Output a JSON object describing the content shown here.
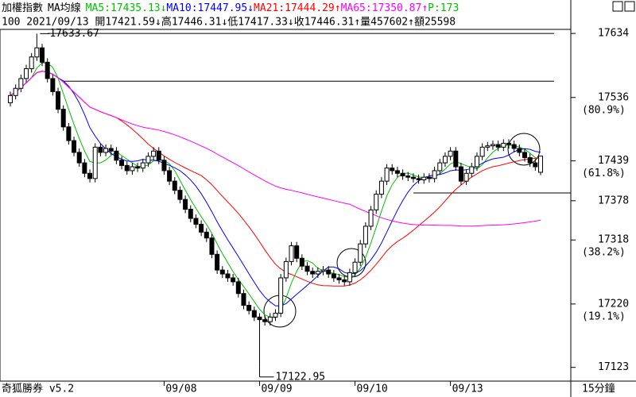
{
  "chart_data": {
    "type": "candlestick",
    "title": "加權指數",
    "indicator_label": "MA均線",
    "header_ma": [
      {
        "text": "MA5:17435.13↓",
        "color": "#00c000"
      },
      {
        "text": "MA10:17447.95↓",
        "color": "#0000ff"
      },
      {
        "text": "MA21:17444.29↑",
        "color": "#ff0000"
      },
      {
        "text": "MA65:17350.87↑",
        "color": "#ff00ff"
      },
      {
        "text": "P:173",
        "color": "#00c000"
      }
    ],
    "info_line": "100 2021/09/13 開17421.59↓高17446.31↓低17417.33↓收17446.31↑量457602↑額25598",
    "footer_left": "奇狐勝券 v5.2",
    "footer_right": "15分鐘",
    "day_labels": [
      {
        "index": 29,
        "label": "09/08"
      },
      {
        "index": 47,
        "label": "09/09"
      },
      {
        "index": 65,
        "label": "09/10"
      },
      {
        "index": 83,
        "label": "09/13"
      }
    ],
    "ylim": [
      17102,
      17639
    ],
    "yticks": [
      17634,
      17536,
      17439,
      17378,
      17318,
      17220,
      17123
    ],
    "retracement_labels": [
      {
        "value": 17536,
        "label": "(80.9%)"
      },
      {
        "value": 17439,
        "label": "(61.8%)"
      },
      {
        "value": 17318,
        "label": "(38.2%)"
      },
      {
        "value": 17220,
        "label": "(19.1%)"
      }
    ],
    "reference_lines": [
      17634,
      17561,
      17390
    ],
    "annotations": [
      {
        "index": 5,
        "value": 17633.67,
        "label": "17633.67"
      },
      {
        "index": 47,
        "value": 17122.95,
        "label": "17122.95"
      }
    ],
    "up_color": "#ffffff",
    "down_color": "#000000",
    "ma_periods": [
      {
        "period": 5,
        "color": "#00c000"
      },
      {
        "period": 10,
        "color": "#0000ff"
      },
      {
        "period": 21,
        "color": "#ff0000"
      },
      {
        "period": 65,
        "color": "#ff00ff"
      }
    ],
    "open": [
      17528,
      17539,
      17550,
      17565,
      17580,
      17598,
      17612,
      17590,
      17565,
      17545,
      17518,
      17491,
      17470,
      17452,
      17436,
      17420,
      17412,
      17460,
      17452,
      17458,
      17454,
      17440,
      17432,
      17424,
      17430,
      17428,
      17436,
      17446,
      17454,
      17440,
      17424,
      17408,
      17394,
      17380,
      17365,
      17351,
      17342,
      17330,
      17321,
      17296,
      17272,
      17266,
      17260,
      17254,
      17236,
      17218,
      17210,
      17200,
      17196,
      17193,
      17200,
      17206,
      17260,
      17285,
      17309,
      17290,
      17278,
      17270,
      17266,
      17270,
      17272,
      17266,
      17260,
      17257,
      17254,
      17268,
      17284,
      17312,
      17339,
      17364,
      17388,
      17408,
      17428,
      17424,
      17420,
      17416,
      17414,
      17412,
      17410,
      17414,
      17412,
      17424,
      17436,
      17446,
      17454,
      17430,
      17408,
      17420,
      17430,
      17446,
      17460,
      17462,
      17464,
      17460,
      17466,
      17464,
      17458,
      17452,
      17444,
      17436,
      17421.59
    ],
    "high": [
      17545,
      17556,
      17571,
      17586,
      17604,
      17633.67,
      17618,
      17596,
      17571,
      17551,
      17524,
      17497,
      17476,
      17458,
      17442,
      17426,
      17466,
      17466,
      17464,
      17464,
      17460,
      17446,
      17438,
      17436,
      17436,
      17442,
      17452,
      17460,
      17460,
      17446,
      17430,
      17414,
      17400,
      17386,
      17371,
      17357,
      17348,
      17336,
      17327,
      17302,
      17278,
      17272,
      17266,
      17260,
      17242,
      17224,
      17216,
      17206,
      17202,
      17206,
      17212,
      17266,
      17291,
      17315,
      17315,
      17296,
      17284,
      17276,
      17276,
      17278,
      17278,
      17272,
      17266,
      17263,
      17274,
      17290,
      17318,
      17345,
      17370,
      17394,
      17414,
      17434,
      17434,
      17430,
      17426,
      17422,
      17420,
      17418,
      17420,
      17420,
      17430,
      17442,
      17452,
      17460,
      17460,
      17436,
      17426,
      17436,
      17452,
      17466,
      17468,
      17470,
      17470,
      17472,
      17472,
      17470,
      17464,
      17458,
      17450,
      17442,
      17446.31
    ],
    "low": [
      17522,
      17533,
      17544,
      17559,
      17574,
      17592,
      17584,
      17559,
      17539,
      17512,
      17485,
      17464,
      17446,
      17430,
      17414,
      17406,
      17406,
      17446,
      17446,
      17448,
      17434,
      17426,
      17418,
      17418,
      17422,
      17422,
      17430,
      17440,
      17434,
      17418,
      17402,
      17388,
      17374,
      17359,
      17345,
      17336,
      17324,
      17315,
      17290,
      17266,
      17260,
      17254,
      17248,
      17230,
      17212,
      17204,
      17194,
      17122.95,
      17187,
      17187,
      17194,
      17200,
      17254,
      17279,
      17284,
      17272,
      17264,
      17260,
      17260,
      17264,
      17260,
      17254,
      17251,
      17248,
      17248,
      17262,
      17278,
      17306,
      17333,
      17358,
      17382,
      17402,
      17418,
      17414,
      17410,
      17408,
      17406,
      17404,
      17404,
      17406,
      17406,
      17418,
      17430,
      17440,
      17424,
      17402,
      17402,
      17414,
      17424,
      17440,
      17454,
      17456,
      17454,
      17454,
      17458,
      17452,
      17446,
      17438,
      17430,
      17424,
      17417.33
    ],
    "close": [
      17539,
      17550,
      17565,
      17580,
      17598,
      17612,
      17590,
      17565,
      17545,
      17518,
      17491,
      17470,
      17452,
      17436,
      17420,
      17412,
      17460,
      17452,
      17458,
      17454,
      17440,
      17432,
      17424,
      17430,
      17428,
      17436,
      17446,
      17454,
      17440,
      17424,
      17408,
      17394,
      17380,
      17365,
      17351,
      17342,
      17330,
      17321,
      17296,
      17272,
      17266,
      17260,
      17254,
      17236,
      17218,
      17210,
      17200,
      17196,
      17193,
      17200,
      17206,
      17260,
      17285,
      17309,
      17290,
      17278,
      17270,
      17266,
      17270,
      17272,
      17266,
      17260,
      17257,
      17254,
      17268,
      17284,
      17312,
      17339,
      17364,
      17388,
      17408,
      17428,
      17424,
      17420,
      17416,
      17414,
      17412,
      17410,
      17414,
      17412,
      17424,
      17436,
      17446,
      17454,
      17430,
      17408,
      17420,
      17430,
      17446,
      17460,
      17462,
      17464,
      17460,
      17466,
      17464,
      17458,
      17452,
      17444,
      17436,
      17430,
      17446.31
    ]
  }
}
